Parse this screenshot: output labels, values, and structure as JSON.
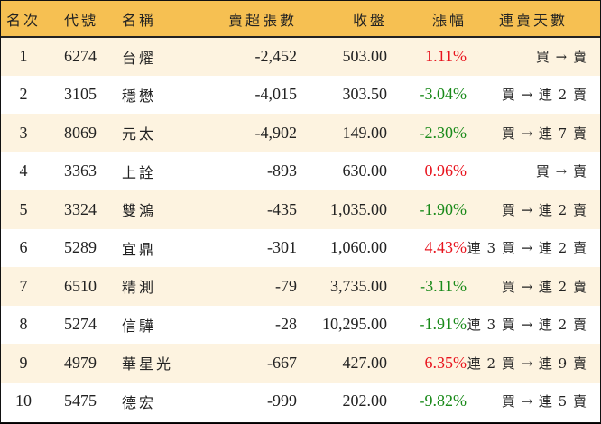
{
  "table": {
    "headers": {
      "rank": "名次",
      "code": "代號",
      "name": "名稱",
      "net_sell": "賣超張數",
      "close": "收盤",
      "change": "漲幅",
      "streak": "連賣天數"
    },
    "colors": {
      "header_bg": "#f6c052",
      "odd_row_bg": "#fdf3e0",
      "up": "#e8141e",
      "down": "#1a8a1a"
    },
    "rows": [
      {
        "rank": "1",
        "code": "6274",
        "name": "台燿",
        "net_sell": "-2,452",
        "close": "503.00",
        "change": "1.11%",
        "direction": "up",
        "streak": "買 → 賣"
      },
      {
        "rank": "2",
        "code": "3105",
        "name": "穩懋",
        "net_sell": "-4,015",
        "close": "303.50",
        "change": "-3.04%",
        "direction": "down",
        "streak": "買 → 連 2 賣"
      },
      {
        "rank": "3",
        "code": "8069",
        "name": "元太",
        "net_sell": "-4,902",
        "close": "149.00",
        "change": "-2.30%",
        "direction": "down",
        "streak": "買 → 連 7 賣"
      },
      {
        "rank": "4",
        "code": "3363",
        "name": "上詮",
        "net_sell": "-893",
        "close": "630.00",
        "change": "0.96%",
        "direction": "up",
        "streak": "買 → 賣"
      },
      {
        "rank": "5",
        "code": "3324",
        "name": "雙鴻",
        "net_sell": "-435",
        "close": "1,035.00",
        "change": "-1.90%",
        "direction": "down",
        "streak": "買 → 連 2 賣"
      },
      {
        "rank": "6",
        "code": "5289",
        "name": "宜鼎",
        "net_sell": "-301",
        "close": "1,060.00",
        "change": "4.43%",
        "direction": "up",
        "streak": "連 3 買 → 連 2 賣"
      },
      {
        "rank": "7",
        "code": "6510",
        "name": "精測",
        "net_sell": "-79",
        "close": "3,735.00",
        "change": "-3.11%",
        "direction": "down",
        "streak": "買 → 連 2 賣"
      },
      {
        "rank": "8",
        "code": "5274",
        "name": "信驊",
        "net_sell": "-28",
        "close": "10,295.00",
        "change": "-1.91%",
        "direction": "down",
        "streak": "連 3 買 → 連 2 賣"
      },
      {
        "rank": "9",
        "code": "4979",
        "name": "華星光",
        "net_sell": "-667",
        "close": "427.00",
        "change": "6.35%",
        "direction": "up",
        "streak": "連 2 買 → 連 9 賣"
      },
      {
        "rank": "10",
        "code": "5475",
        "name": "德宏",
        "net_sell": "-999",
        "close": "202.00",
        "change": "-9.82%",
        "direction": "down",
        "streak": "買 → 連 5 賣"
      }
    ]
  }
}
